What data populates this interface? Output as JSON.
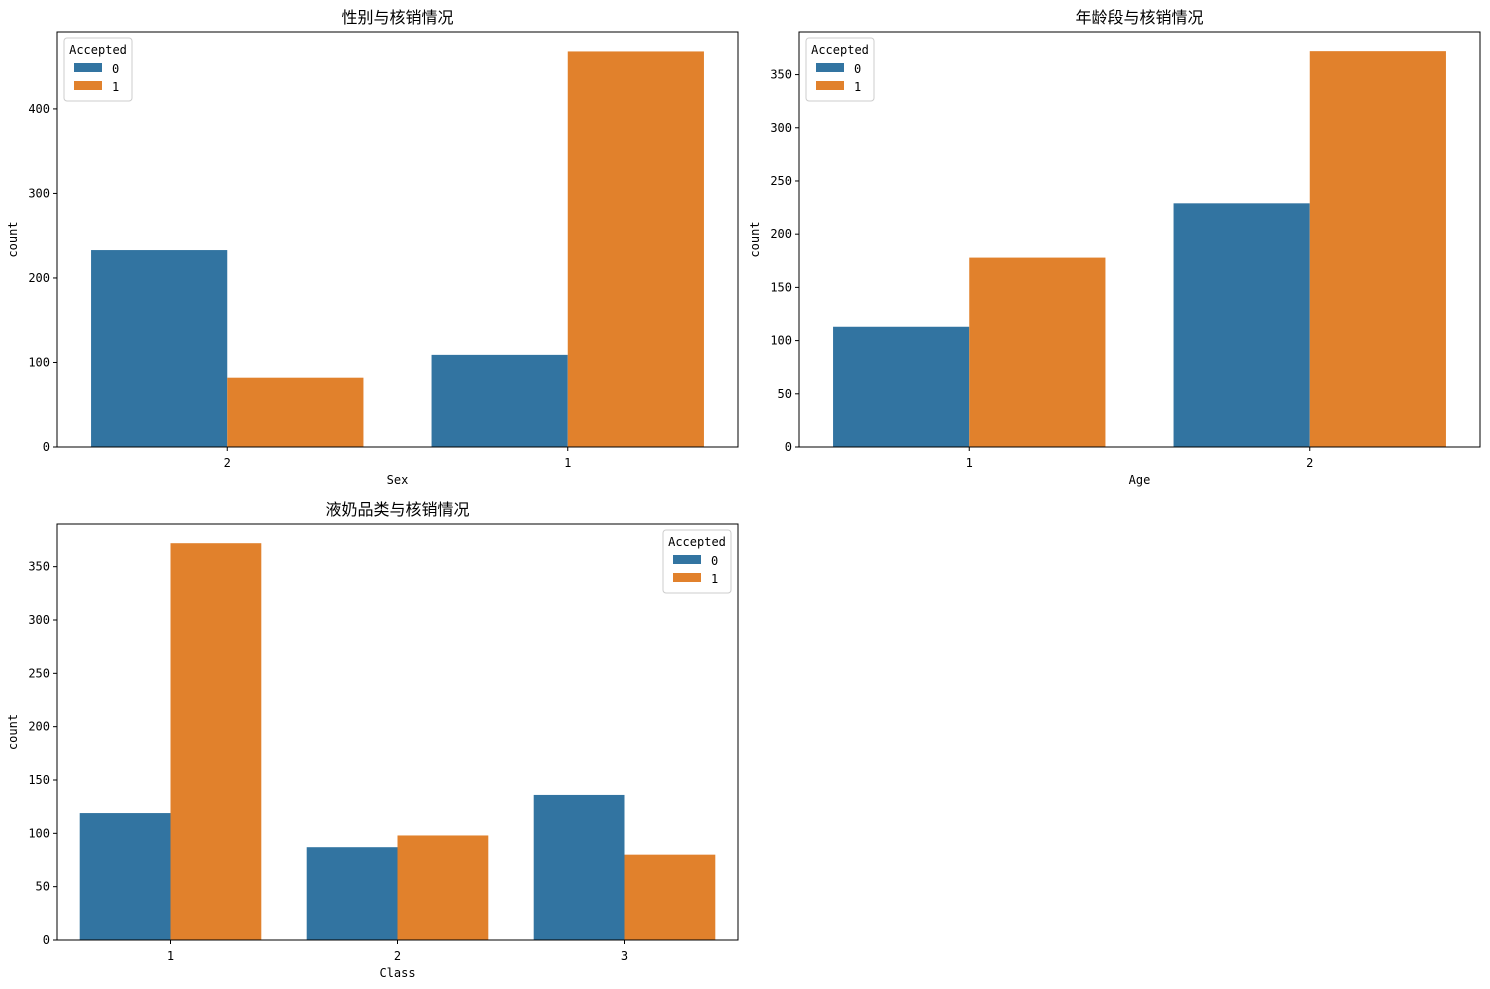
{
  "colors": {
    "series_0": "#3274a1",
    "series_1": "#e1812c"
  },
  "chart_data": [
    {
      "type": "bar",
      "title": "性别与核销情况",
      "xlabel": "Sex",
      "ylabel": "count",
      "categories": [
        "2",
        "1"
      ],
      "series": [
        {
          "name": "0",
          "values": [
            233,
            109
          ]
        },
        {
          "name": "1",
          "values": [
            82,
            468
          ]
        }
      ],
      "ylim": [
        0,
        491
      ],
      "yticks": [
        0,
        100,
        200,
        300,
        400
      ],
      "legend": {
        "title": "Accepted",
        "position": "top-left"
      }
    },
    {
      "type": "bar",
      "title": "年龄段与核销情况",
      "xlabel": "Age",
      "ylabel": "count",
      "categories": [
        "1",
        "2"
      ],
      "series": [
        {
          "name": "0",
          "values": [
            113,
            229
          ]
        },
        {
          "name": "1",
          "values": [
            178,
            372
          ]
        }
      ],
      "ylim": [
        0,
        390
      ],
      "yticks": [
        0,
        50,
        100,
        150,
        200,
        250,
        300,
        350
      ],
      "legend": {
        "title": "Accepted",
        "position": "top-left"
      }
    },
    {
      "type": "bar",
      "title": "液奶品类与核销情况",
      "xlabel": "Class",
      "ylabel": "count",
      "categories": [
        "1",
        "2",
        "3"
      ],
      "series": [
        {
          "name": "0",
          "values": [
            119,
            87,
            136
          ]
        },
        {
          "name": "1",
          "values": [
            372,
            98,
            80
          ]
        }
      ],
      "ylim": [
        0,
        390
      ],
      "yticks": [
        0,
        50,
        100,
        150,
        200,
        250,
        300,
        350
      ],
      "legend": {
        "title": "Accepted",
        "position": "top-right"
      }
    }
  ]
}
